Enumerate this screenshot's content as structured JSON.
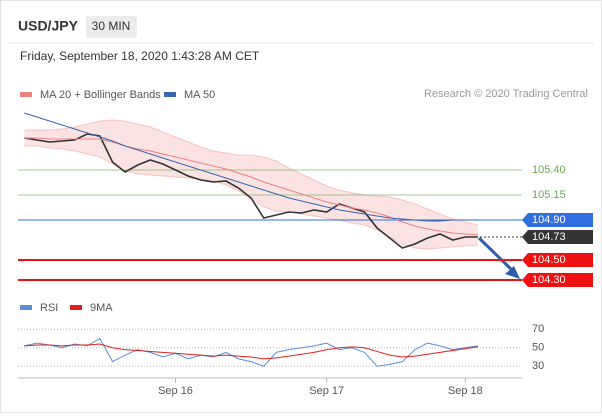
{
  "header": {
    "symbol": "USD/JPY",
    "interval": "30 MIN",
    "timestamp": "Friday, September 18, 2020 1:43:28 AM CET"
  },
  "credit": "Research © 2020 Trading Central",
  "chart_data": [
    {
      "type": "line",
      "ylim": [
        104.15,
        106.1
      ],
      "series": [
        {
          "color": "#333333",
          "values": [
            105.72,
            105.7,
            105.68,
            105.69,
            105.7,
            105.76,
            105.74,
            105.48,
            105.38,
            105.45,
            105.5,
            105.46,
            105.4,
            105.34,
            105.3,
            105.28,
            105.29,
            105.22,
            105.12,
            104.92,
            104.95,
            104.98,
            104.97,
            105.0,
            104.98,
            105.06,
            105.02,
            104.98,
            104.82,
            104.72,
            104.62,
            104.66,
            104.72,
            104.76,
            104.7,
            104.73,
            104.73
          ]
        },
        {
          "name": "MA 20 + Bollinger Bands",
          "color": "#f08080",
          "values": [
            105.72,
            105.72,
            105.71,
            105.71,
            105.71,
            105.71,
            105.71,
            105.68,
            105.64,
            105.61,
            105.59,
            105.56,
            105.53,
            105.5,
            105.47,
            105.44,
            105.41,
            105.37,
            105.33,
            105.28,
            105.24,
            105.2,
            105.16,
            105.12,
            105.08,
            105.05,
            105.02,
            105.0,
            104.97,
            104.93,
            104.88,
            104.84,
            104.81,
            104.79,
            104.77,
            104.76,
            104.75
          ],
          "upper": [
            105.8,
            105.8,
            105.8,
            105.81,
            105.83,
            105.86,
            105.89,
            105.9,
            105.89,
            105.86,
            105.83,
            105.78,
            105.73,
            105.68,
            105.63,
            105.59,
            105.57,
            105.55,
            105.55,
            105.53,
            105.49,
            105.42,
            105.36,
            105.3,
            105.24,
            105.2,
            105.17,
            105.15,
            105.14,
            105.13,
            105.1,
            105.06,
            105.01,
            104.96,
            104.91,
            104.88,
            104.85
          ],
          "lower": [
            105.64,
            105.64,
            105.62,
            105.61,
            105.59,
            105.56,
            105.53,
            105.46,
            105.39,
            105.36,
            105.35,
            105.34,
            105.33,
            105.32,
            105.31,
            105.29,
            105.25,
            105.19,
            105.11,
            105.03,
            104.99,
            104.98,
            104.96,
            104.94,
            104.92,
            104.9,
            104.87,
            104.85,
            104.8,
            104.73,
            104.66,
            104.62,
            104.61,
            104.62,
            104.63,
            104.64,
            104.65
          ]
        },
        {
          "name": "MA 50",
          "color": "#3a66b0",
          "values": [
            105.97,
            105.93,
            105.89,
            105.85,
            105.81,
            105.77,
            105.73,
            105.69,
            105.64,
            105.6,
            105.56,
            105.52,
            105.48,
            105.44,
            105.4,
            105.36,
            105.32,
            105.28,
            105.24,
            105.2,
            105.16,
            105.12,
            105.09,
            105.06,
            105.03,
            105.0,
            104.98,
            104.96,
            104.94,
            104.92,
            104.91,
            104.9,
            104.89,
            104.89,
            104.9,
            104.9,
            104.9
          ]
        }
      ],
      "levels": [
        {
          "value": 105.4,
          "label": "105.40",
          "color": "#6aa84f",
          "kind": "resistance"
        },
        {
          "value": 105.15,
          "label": "105.15",
          "color": "#6aa84f",
          "kind": "resistance"
        },
        {
          "value": 104.9,
          "label": "104.90",
          "color": "#2f6fe0",
          "kind": "ma"
        },
        {
          "value": 104.73,
          "label": "104.73",
          "color": "#333333",
          "kind": "last"
        },
        {
          "value": 104.5,
          "label": "104.50",
          "color": "#ee1111",
          "kind": "support"
        },
        {
          "value": 104.3,
          "label": "104.30",
          "color": "#ee1111",
          "kind": "support"
        }
      ]
    },
    {
      "type": "line",
      "categories": [
        null,
        null,
        null,
        null,
        null,
        null,
        null,
        null,
        null,
        null,
        null,
        null,
        "Sep 16",
        null,
        null,
        null,
        null,
        null,
        null,
        null,
        null,
        null,
        null,
        null,
        "Sep 17",
        null,
        null,
        null,
        null,
        null,
        null,
        null,
        null,
        null,
        null,
        "Sep 18",
        null
      ],
      "ylim": [
        20,
        80
      ],
      "yticks": [
        30,
        50,
        70
      ],
      "grid": true,
      "series": [
        {
          "name": "RSI",
          "color": "#5b8fd6",
          "values": [
            52,
            55,
            53,
            50,
            54,
            52,
            60,
            35,
            42,
            48,
            45,
            40,
            44,
            38,
            42,
            40,
            45,
            38,
            35,
            30,
            45,
            48,
            50,
            52,
            55,
            48,
            50,
            45,
            30,
            32,
            35,
            48,
            55,
            52,
            48,
            50,
            52
          ]
        },
        {
          "name": "9MA",
          "color": "#e02020",
          "values": [
            52,
            53,
            53,
            52,
            53,
            53,
            54,
            50,
            48,
            47,
            46,
            45,
            44,
            43,
            42,
            41,
            42,
            41,
            40,
            38,
            39,
            41,
            43,
            45,
            48,
            50,
            51,
            50,
            46,
            42,
            40,
            41,
            43,
            45,
            47,
            49,
            51
          ]
        }
      ]
    }
  ]
}
